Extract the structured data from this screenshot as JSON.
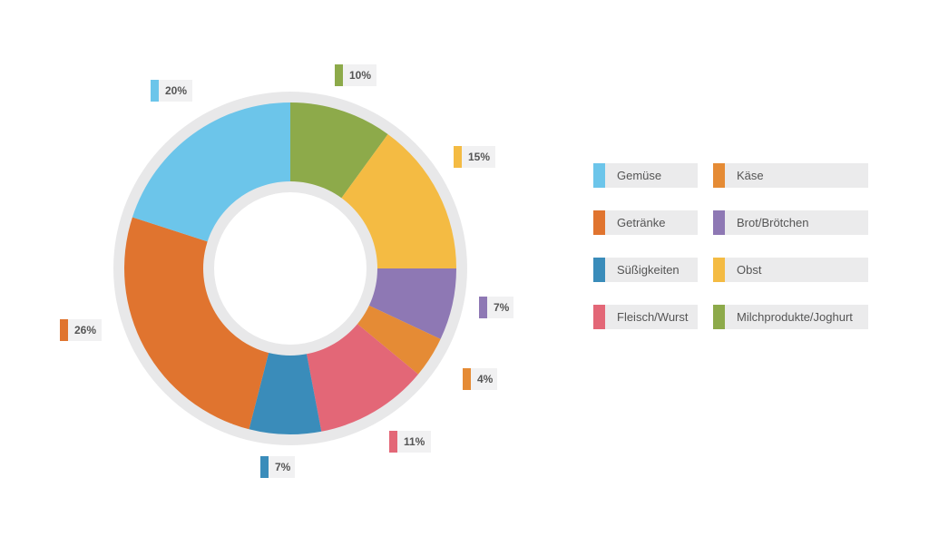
{
  "chart_data": {
    "type": "pie",
    "variant": "donut",
    "unit": "%",
    "slices": [
      {
        "label": "Milchprodukte/Joghurt",
        "value": 10,
        "display": "10%",
        "color": "#8daa4a"
      },
      {
        "label": "Obst",
        "value": 15,
        "display": "15%",
        "color": "#f4bb43"
      },
      {
        "label": "Brot/Brötchen",
        "value": 7,
        "display": "7%",
        "color": "#8e78b4"
      },
      {
        "label": "Käse",
        "value": 4,
        "display": "4%",
        "color": "#e58b35"
      },
      {
        "label": "Fleisch/Wurst",
        "value": 11,
        "display": "11%",
        "color": "#e36777"
      },
      {
        "label": "Süßigkeiten",
        "value": 7,
        "display": "7%",
        "color": "#3a8cba"
      },
      {
        "label": "Getränke",
        "value": 26,
        "display": "26%",
        "color": "#e0742f"
      },
      {
        "label": "Gemüse",
        "value": 20,
        "display": "20%",
        "color": "#6cc5ea"
      }
    ],
    "legend": [
      {
        "label": "Gemüse",
        "color": "#6cc5ea"
      },
      {
        "label": "Käse",
        "color": "#e58b35"
      },
      {
        "label": "Getränke",
        "color": "#e0742f"
      },
      {
        "label": "Brot/Brötchen",
        "color": "#8e78b4"
      },
      {
        "label": "Süßigkeiten",
        "color": "#3a8cba"
      },
      {
        "label": "Obst",
        "color": "#f4bb43"
      },
      {
        "label": "Fleisch/Wurst",
        "color": "#e36777"
      },
      {
        "label": "Milchprodukte/Joghurt",
        "color": "#8daa4a"
      }
    ],
    "legend_position": "right",
    "ring_color": "#e8e8e9",
    "label_background": "#f1f1f2",
    "start": "top, clockwise"
  }
}
